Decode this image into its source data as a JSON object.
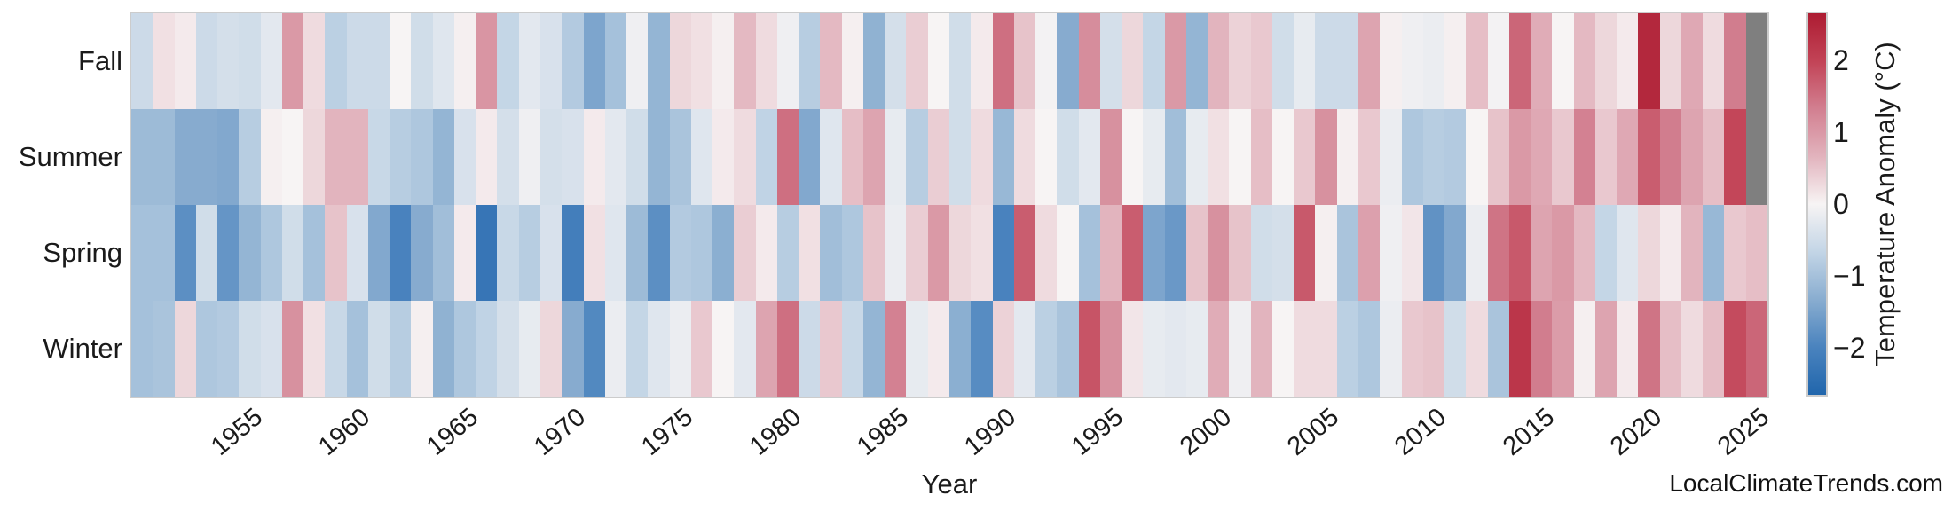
{
  "watermark": "LocalClimateTrends.com",
  "chart_data": {
    "type": "heatmap",
    "xlabel": "Year",
    "x_start": 1950,
    "x_end": 2025,
    "x_tick_labels": [
      "1955",
      "1960",
      "1965",
      "1970",
      "1975",
      "1980",
      "1985",
      "1990",
      "1995",
      "2000",
      "2005",
      "2010",
      "2015",
      "2020",
      "2025"
    ],
    "rows": [
      "Fall",
      "Summer",
      "Spring",
      "Winter"
    ],
    "legend_position": "right",
    "grid": "off",
    "text_color": "#1a1a1a",
    "frame_color": "#cccccc",
    "colorbar": {
      "label": "Temperature Anomaly (°C)",
      "tick_labels": [
        "2",
        "1",
        "0",
        "−1",
        "−2"
      ],
      "tick_values": [
        2,
        1,
        0,
        -1,
        -2
      ],
      "vmin": -2.65,
      "vmax": 2.65,
      "gradient_stops": [
        "#2166ac",
        "#4a83be",
        "#89add0",
        "#c3d5e6",
        "#f7f4f4",
        "#e2b3bd",
        "#d27f90",
        "#c24356",
        "#ad1c32"
      ],
      "missing_color": "#7f7f7f"
    },
    "series": [
      {
        "name": "Fall",
        "values": [
          -0.55,
          0.2,
          0.1,
          -0.55,
          -0.45,
          -0.5,
          -0.25,
          1.0,
          0.25,
          -0.75,
          -0.55,
          -0.55,
          0.0,
          -0.5,
          -0.3,
          0.05,
          1.05,
          -0.65,
          -0.25,
          -0.4,
          -0.85,
          -1.45,
          -1.0,
          -0.1,
          -1.2,
          0.3,
          0.2,
          0.05,
          0.6,
          0.25,
          -0.1,
          -0.8,
          0.6,
          0.05,
          -1.25,
          -0.45,
          0.4,
          0.0,
          -0.5,
          0.1,
          1.5,
          0.5,
          -0.05,
          -1.35,
          1.15,
          -0.45,
          0.3,
          -0.65,
          1.0,
          -1.2,
          0.65,
          0.35,
          0.45,
          -0.5,
          -0.2,
          -0.55,
          -0.55,
          0.85,
          0.05,
          -0.1,
          -0.15,
          0.05,
          0.55,
          -0.05,
          1.6,
          0.75,
          0.0,
          0.6,
          0.3,
          0.1,
          2.45,
          0.3,
          0.8,
          0.25,
          1.35,
          null
        ]
      },
      {
        "name": "Summer",
        "values": [
          -1.1,
          -1.1,
          -1.35,
          -1.35,
          -1.4,
          -0.8,
          0.05,
          0.0,
          0.3,
          0.65,
          0.65,
          -0.6,
          -0.8,
          -0.9,
          -1.2,
          -0.4,
          0.1,
          -0.45,
          -0.1,
          -0.45,
          -0.4,
          0.1,
          -0.25,
          -0.5,
          -1.2,
          -0.95,
          -0.3,
          0.1,
          0.25,
          -0.7,
          1.5,
          -1.4,
          -0.3,
          0.55,
          0.85,
          -0.2,
          -0.8,
          0.4,
          -0.5,
          0.25,
          -1.15,
          0.25,
          0.0,
          -0.5,
          -0.25,
          1.1,
          0.0,
          -0.2,
          -1.05,
          -0.2,
          0.2,
          0.0,
          0.55,
          0.0,
          0.45,
          1.1,
          0.05,
          0.45,
          -0.15,
          -0.9,
          -0.8,
          -0.85,
          0.0,
          0.5,
          1.0,
          0.8,
          0.45,
          1.3,
          0.45,
          0.8,
          1.7,
          1.35,
          0.85,
          0.55,
          1.95,
          null
        ]
      },
      {
        "name": "Spring",
        "values": [
          -1.0,
          -1.0,
          -1.8,
          -0.5,
          -1.7,
          -1.2,
          -0.9,
          -0.5,
          -1.0,
          0.5,
          -0.4,
          -1.4,
          -2.0,
          -1.35,
          -1.05,
          0.1,
          -2.3,
          -0.6,
          -0.8,
          -0.4,
          -2.1,
          0.2,
          -0.3,
          -1.1,
          -1.8,
          -0.85,
          -0.9,
          -1.3,
          0.4,
          0.1,
          -0.8,
          0.2,
          -1.05,
          -0.9,
          0.5,
          -0.15,
          0.4,
          1.0,
          0.3,
          0.2,
          -2.0,
          1.7,
          0.25,
          0.0,
          -1.0,
          0.65,
          1.7,
          -1.45,
          -1.65,
          0.5,
          1.1,
          0.5,
          -0.5,
          -0.45,
          1.75,
          0.05,
          -0.95,
          0.9,
          -0.1,
          0.15,
          -1.75,
          -1.4,
          -0.15,
          1.45,
          1.75,
          0.85,
          1.0,
          0.6,
          -0.65,
          -0.3,
          0.3,
          0.1,
          0.65,
          -1.15,
          0.45,
          0.55
        ]
      },
      {
        "name": "Winter",
        "values": [
          -1.0,
          -0.95,
          0.3,
          -0.9,
          -0.85,
          -0.5,
          -0.4,
          1.1,
          0.2,
          -0.6,
          -1.0,
          -0.5,
          -0.8,
          0.05,
          -1.25,
          -0.9,
          -0.7,
          -0.45,
          -0.2,
          0.3,
          -1.35,
          -1.9,
          -0.15,
          -0.65,
          -0.3,
          -0.15,
          0.45,
          0.0,
          -0.25,
          0.85,
          1.5,
          -0.55,
          0.45,
          -0.6,
          -1.2,
          1.3,
          -0.2,
          0.1,
          -1.3,
          -1.85,
          0.35,
          -0.25,
          -0.75,
          -0.95,
          1.8,
          1.1,
          0.15,
          -0.2,
          -0.25,
          -0.2,
          0.75,
          -0.1,
          0.65,
          0.0,
          0.25,
          0.25,
          -0.75,
          -0.9,
          -0.15,
          0.45,
          0.5,
          -0.5,
          0.25,
          -0.95,
          2.2,
          1.35,
          0.95,
          0.05,
          0.85,
          0.1,
          1.45,
          0.55,
          0.25,
          0.55,
          1.9,
          1.6
        ]
      }
    ]
  }
}
